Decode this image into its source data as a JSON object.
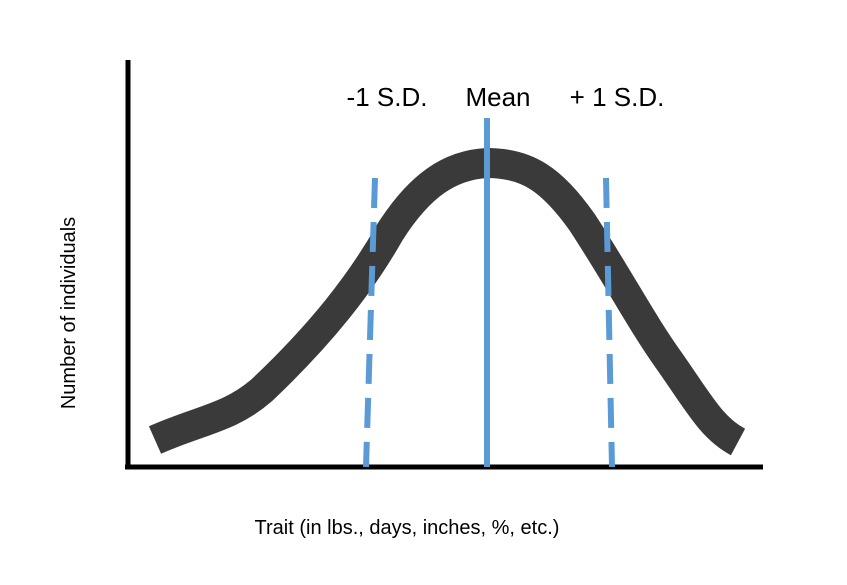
{
  "labels": {
    "minus_sd": "-1 S.D.",
    "mean": "Mean",
    "plus_sd": "+ 1 S.D."
  },
  "y_axis_label": "Number of individuals",
  "x_axis_label": "Trait (in lbs., days, inches, %, etc.)"
}
